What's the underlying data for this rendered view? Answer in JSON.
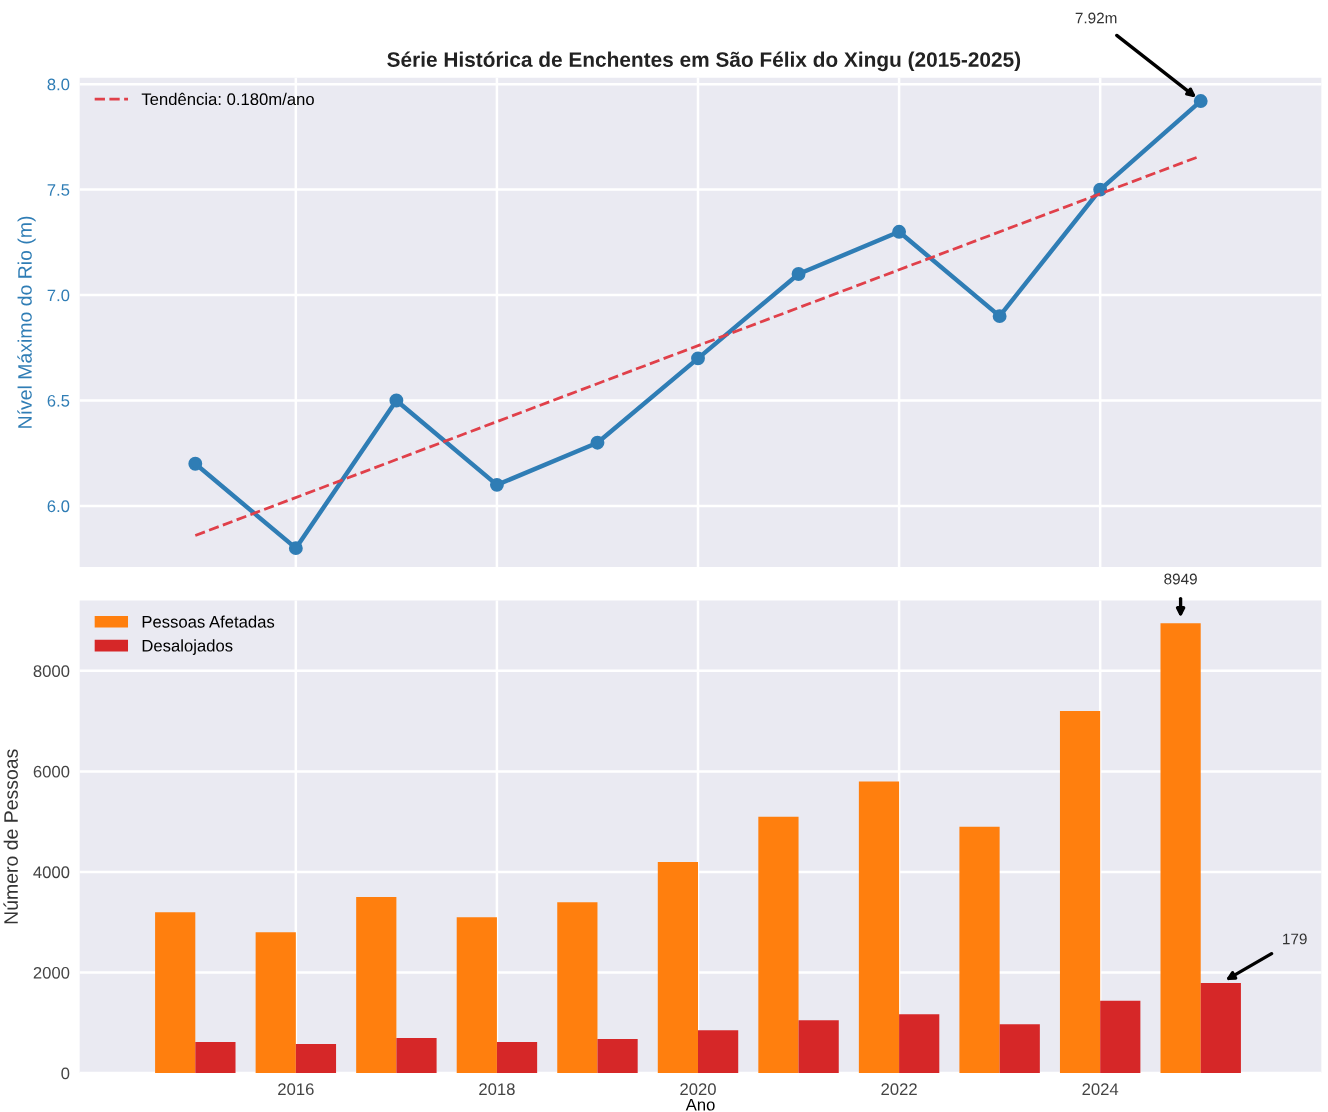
{
  "chart_data": [
    {
      "type": "line",
      "title": "Série Histórica de Enchentes em São Félix do Xingu (2015-2025)",
      "ylabel": "Nível Máximo do Rio (m)",
      "x": [
        2015,
        2016,
        2017,
        2018,
        2019,
        2020,
        2021,
        2022,
        2023,
        2024,
        2025
      ],
      "series": [
        {
          "color": "#2f7db5",
          "values": [
            6.2,
            5.8,
            6.5,
            6.1,
            6.3,
            6.7,
            7.1,
            7.3,
            6.9,
            7.5,
            7.92
          ],
          "marker": "circle",
          "line_style": "solid"
        },
        {
          "name": "Tendência: 0.180m/ano",
          "color": "#e0404a",
          "x": [
            2015,
            2025
          ],
          "values": [
            5.86,
            7.66
          ],
          "marker": "none",
          "line_style": "dashed"
        }
      ],
      "xlim": [
        2013.85,
        2026.2
      ],
      "xticks": [
        2016,
        2018,
        2020,
        2022,
        2024
      ],
      "ylim": [
        5.71,
        8.03
      ],
      "yticks": [
        {
          "value": 6,
          "label": "6.0"
        },
        6.5,
        {
          "value": 7,
          "label": "7.0"
        },
        7.5,
        {
          "value": 8,
          "label": "8.0"
        }
      ],
      "tick_labels": "y",
      "grid": true,
      "legend": "top left",
      "annotations": [
        {
          "text": "7.92m",
          "x": 2025,
          "y": 7.92
        }
      ]
    },
    {
      "type": "bar",
      "xlabel": "Ano",
      "ylabel": "Número de Pessoas",
      "x": [
        2015,
        2016,
        2017,
        2018,
        2019,
        2020,
        2021,
        2022,
        2023,
        2024,
        2025
      ],
      "series": [
        {
          "name": "Pessoas Afetadas",
          "color": "#ff7f0e",
          "values": [
            3200,
            2800,
            3500,
            3100,
            3400,
            4200,
            5100,
            5800,
            4900,
            7200,
            8949
          ]
        },
        {
          "name": "Desalojados",
          "color": "#d62728",
          "values": [
            620,
            580,
            700,
            620,
            680,
            850,
            1050,
            1170,
            970,
            1440,
            1790
          ]
        }
      ],
      "xlim": [
        2013.85,
        2026.2
      ],
      "xticks": [
        2016,
        2018,
        2020,
        2022,
        2024
      ],
      "ylim": [
        0,
        9400
      ],
      "yticks": [
        0,
        2000,
        4000,
        6000,
        8000
      ],
      "grid": true,
      "legend": "top left",
      "annotations": [
        {
          "text": "8949",
          "x": 2024.8,
          "y": 8949
        },
        {
          "text": "179",
          "x": 2025.2,
          "y": 1790
        }
      ]
    }
  ]
}
